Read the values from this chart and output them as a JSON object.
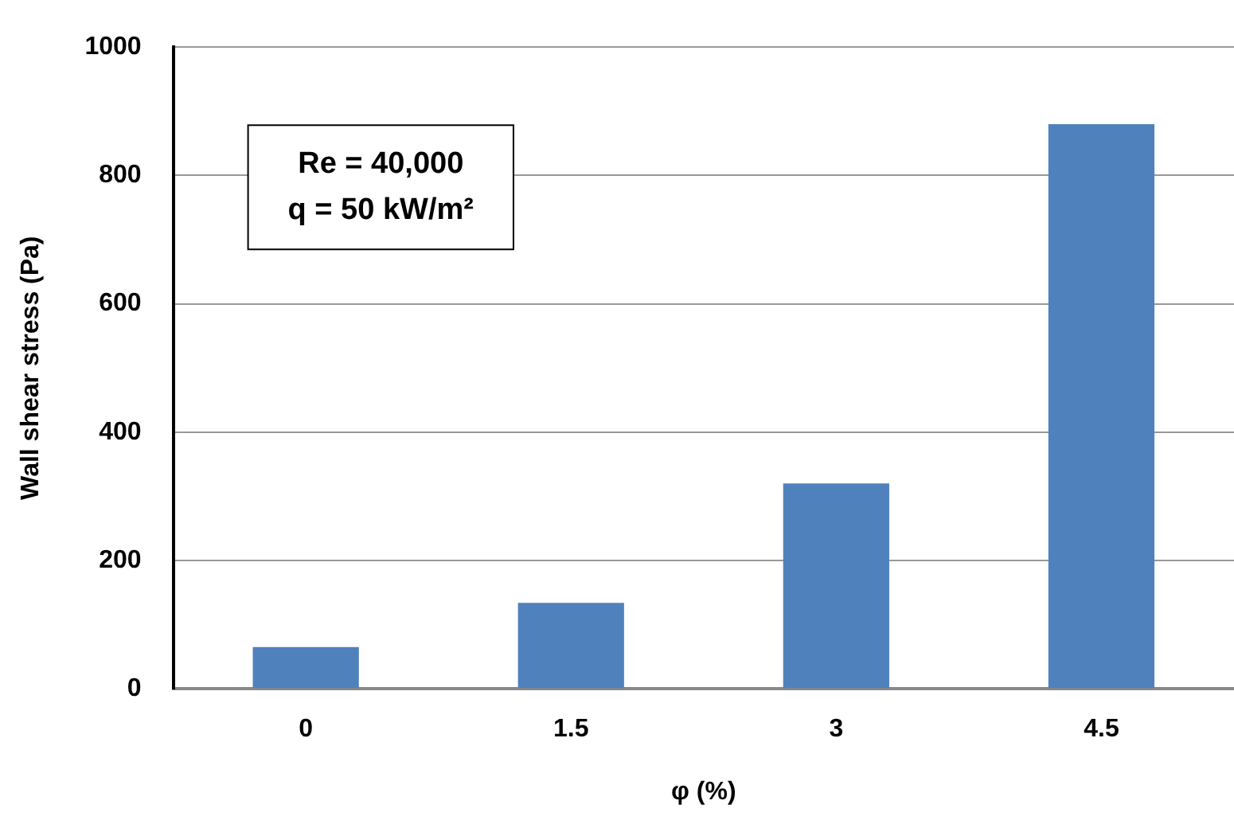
{
  "chart_data": {
    "type": "bar",
    "xlabel": "φ (%)",
    "ylabel": "Wall shear stress (Pa)",
    "categories": [
      "0",
      "1.5",
      "3",
      "4.5"
    ],
    "series": [
      {
        "color": "#4f81bd",
        "values": [
          65,
          134,
          320,
          880
        ]
      }
    ],
    "ylim": [
      0,
      1000
    ],
    "yticks": [
      0,
      200,
      400,
      600,
      800,
      1000
    ],
    "grid": "y",
    "legend": false,
    "annotations": [
      "Re = 40,000",
      "q = 50 kW/m²"
    ]
  }
}
